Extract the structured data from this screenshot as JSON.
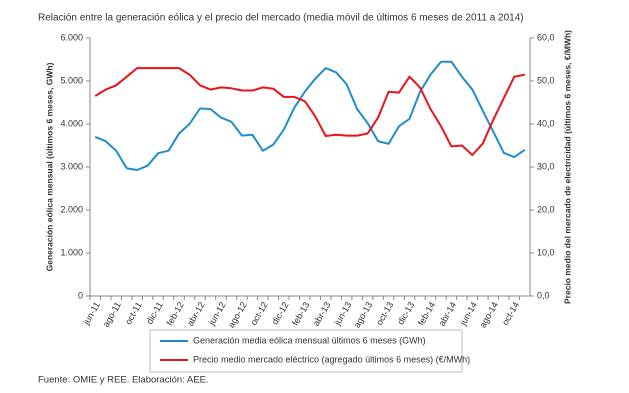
{
  "chart_data": {
    "type": "line",
    "title": "Relación entre la generación eólica y el precio del mercado (media móvil de últimos 6 meses de 2011 a 2014)",
    "ylabel": "Generación eólica mensual (últimos 6 meses, GWh)",
    "y2label": "Precio medio del mercado de electricidad (últimos 6 meses, €/MWh)",
    "source": "Fuente: OMIE y REE. Elaboración: AEE.",
    "categories": [
      "jun-11",
      null,
      "ago-11",
      null,
      "oct-11",
      null,
      "dic-11",
      null,
      "feb-12",
      null,
      "abr-12",
      null,
      "jun-12",
      null,
      "ago-12",
      null,
      "oct-12",
      null,
      "dic-12",
      null,
      "feb-13",
      null,
      "abr-13",
      null,
      "jun-13",
      null,
      "ago-13",
      null,
      "oct-13",
      null,
      "dic-13",
      null,
      "feb-14",
      null,
      "abr-14",
      null,
      "jun-14",
      null,
      "ago-14",
      null,
      "oct-14",
      null
    ],
    "series": [
      {
        "name": "Generación media eólica mensual últimos 6 meses (GWh)",
        "color": "#1f8ccc",
        "values": [
          3700,
          3600,
          3380,
          2970,
          2930,
          3030,
          3320,
          3380,
          3780,
          4000,
          4360,
          4350,
          4150,
          4050,
          3730,
          3750,
          3380,
          3520,
          3870,
          4380,
          4750,
          5050,
          5300,
          5200,
          4920,
          4350,
          4020,
          3600,
          3540,
          3950,
          4120,
          4750,
          5150,
          5450,
          5450,
          5100,
          4800,
          4300,
          3820,
          3330,
          3230,
          3400
        ]
      },
      {
        "name": "Precio medio mercado eléctrico (agregado últimos 6 meses) (€/MWh)",
        "color": "#e8141b",
        "axis": "y2",
        "values": [
          46.5,
          48,
          49,
          51,
          53,
          53,
          53,
          53,
          53,
          51.5,
          49,
          48,
          48.5,
          48.3,
          47.8,
          47.8,
          48.5,
          48.2,
          46.3,
          46.3,
          45.3,
          41.8,
          37.2,
          37.5,
          37.3,
          37.3,
          37.8,
          41.5,
          47.5,
          47.3,
          51,
          48.5,
          43.5,
          39.5,
          34.8,
          35,
          32.8,
          35.5,
          41,
          46,
          51,
          51.5
        ]
      }
    ],
    "ylim": [
      0,
      6000
    ],
    "yticks": [
      0,
      {
        "value": 1000,
        "label": "1.000"
      },
      {
        "value": 2000,
        "label": "2.000"
      },
      {
        "value": 3000,
        "label": "3.000"
      },
      {
        "value": 4000,
        "label": "4.000"
      },
      {
        "value": 5000,
        "label": "5.000"
      },
      {
        "value": 6000,
        "label": "6.000"
      }
    ],
    "y2lim": [
      0,
      60
    ],
    "y2ticks": [
      {
        "value": 0,
        "label": "0,0"
      },
      {
        "value": 10,
        "label": "10,0"
      },
      {
        "value": 20,
        "label": "20,0"
      },
      {
        "value": 30,
        "label": "30,0"
      },
      {
        "value": 40,
        "label": "40,0"
      },
      {
        "value": 50,
        "label": "50,0"
      },
      {
        "value": 60,
        "label": "60,0"
      }
    ],
    "grid": false
  }
}
